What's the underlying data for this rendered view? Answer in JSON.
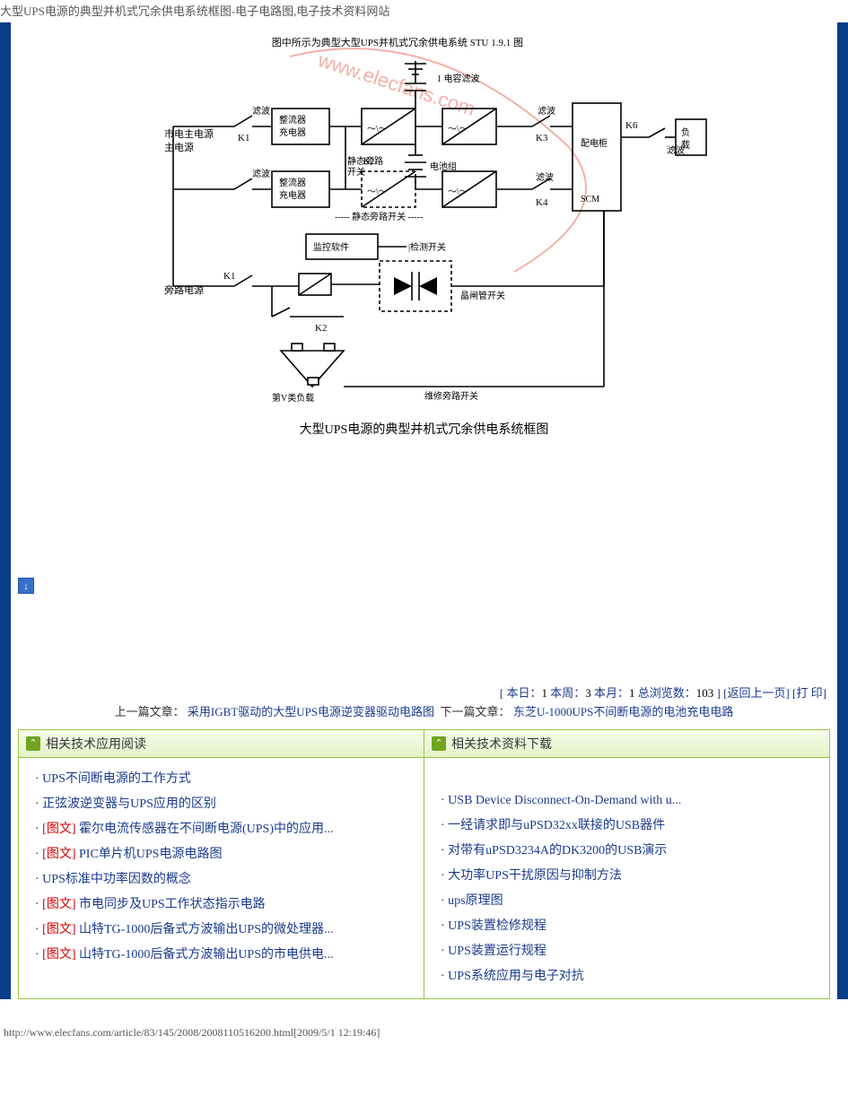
{
  "header_line": "大型UPS电源的典型并机式冗余供电系统框图-电子电路图,电子技术资料网站",
  "caption": "大型UPS电源的典型并机式冗余供电系统框图",
  "ad_badge": "↓",
  "stats": {
    "today_label": "本日：",
    "today_val": "1",
    "week_label": "本周：",
    "week_val": "3",
    "month_label": "本月：",
    "month_val": "1",
    "total_label": "总浏览数：",
    "total_val": "103",
    "back_label": "返回上一页",
    "print_label": "打 印"
  },
  "prev": {
    "label": "上一篇文章：",
    "text": "采用IGBT驱动的大型UPS电源逆变器驱动电路图"
  },
  "next": {
    "label": "下一篇文章：",
    "text": "东芝U-1000UPS不间断电源的电池充电电路"
  },
  "section_left_title": "相关技术应用阅读",
  "section_right_title": "相关技术资料下载",
  "tag_text": "[图文]",
  "left_items": [
    {
      "tag": false,
      "text": "UPS不间断电源的工作方式"
    },
    {
      "tag": false,
      "text": "正弦波逆变器与UPS应用的区别"
    },
    {
      "tag": true,
      "text": "霍尔电流传感器在不间断电源(UPS)中的应用..."
    },
    {
      "tag": true,
      "text": "PIC单片机UPS电源电路图"
    },
    {
      "tag": false,
      "text": "UPS标准中功率因数的概念"
    },
    {
      "tag": true,
      "text": "市电同步及UPS工作状态指示电路"
    },
    {
      "tag": true,
      "text": "山特TG-1000后备式方波输出UPS的微处理器..."
    },
    {
      "tag": true,
      "text": "山特TG-1000后备式方波输出UPS的市电供电..."
    }
  ],
  "right_items": [
    {
      "text": "USB Device Disconnect-On-Demand with u..."
    },
    {
      "text": "一经请求即与uPSD32xx联接的USB器件"
    },
    {
      "text": "对带有uPSD3234A的DK3200的USB演示"
    },
    {
      "text": "大功率UPS干扰原因与抑制方法"
    },
    {
      "text": "ups原理图"
    },
    {
      "text": "UPS装置检修规程"
    },
    {
      "text": "UPS装置运行规程"
    },
    {
      "text": "UPS系统应用与电子对抗"
    }
  ],
  "footer_url": "http://www.elecfans.com/article/83/145/2008/2008110516200.html[2009/5/1  12:19:46]",
  "colors": {
    "frame": "#0a3d8a",
    "green_border": "#98c441",
    "link_blue": "#1a3a8a",
    "tag_red": "#c00"
  }
}
